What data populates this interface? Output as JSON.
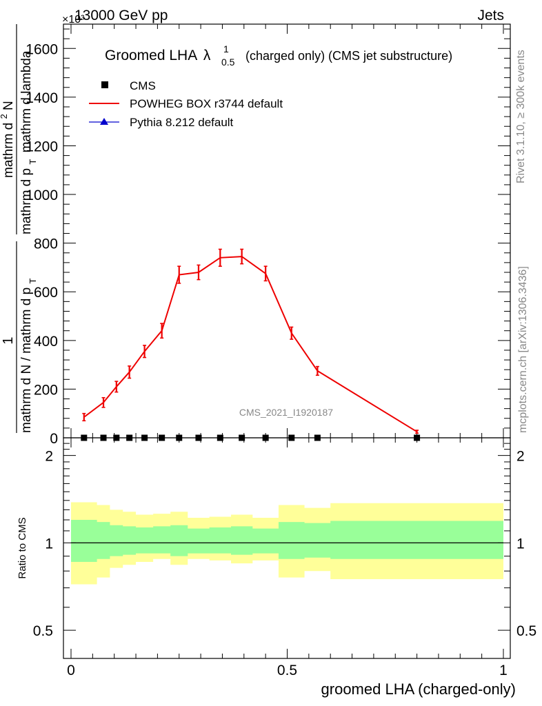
{
  "header": {
    "left": "13000 GeV pp",
    "right": "Jets",
    "exponent": "×10³"
  },
  "side_text": {
    "rivet": "Rivet 3.1.10, ≥ 300k events",
    "mcplots": "mcplots.cern.ch [arXiv:1306.3436]"
  },
  "watermark": "CMS_2021_I1920187",
  "chart_data": [
    {
      "type": "line",
      "title_main": "Groomed LHA",
      "title_lambda": "λ",
      "title_sup": "1",
      "title_sub": "0.5",
      "title_rest": "(charged only) (CMS jet substructure)",
      "ylabel_top_num": "1",
      "ylabel_top_den": "mathrm d N / mathrm d p",
      "ylabel_top_den_sub": "T",
      "ylabel_bottom_num": "mathrm d",
      "ylabel_bottom_num_sup": "2",
      "ylabel_bottom_num_rest": "N",
      "ylabel_bottom_den": "mathrm d p",
      "ylabel_bottom_den_sub": "T",
      "ylabel_bottom_den_rest": "mathrm d lambda",
      "xlim": [
        0,
        1
      ],
      "ylim": [
        0,
        1700
      ],
      "y_ticks": [
        0,
        200,
        400,
        600,
        800,
        1000,
        1200,
        1400,
        1600
      ],
      "y_tick_labels": [
        "0",
        "200",
        "400",
        "600",
        "800",
        "1000",
        "1200",
        "1400",
        "1600"
      ],
      "legend": [
        {
          "name": "CMS",
          "color": "#000000",
          "marker": "square"
        },
        {
          "name": "POWHEG BOX r3744 default",
          "color": "#ee0000",
          "marker": "line"
        },
        {
          "name": "Pythia 8.212 default",
          "color": "#0000cc",
          "marker": "triangle"
        }
      ],
      "series": [
        {
          "name": "CMS",
          "x": [
            0.03,
            0.075,
            0.105,
            0.135,
            0.17,
            0.21,
            0.25,
            0.295,
            0.345,
            0.395,
            0.45,
            0.51,
            0.57,
            0.8
          ],
          "values": [
            0,
            0,
            0,
            0,
            0,
            0,
            0,
            0,
            0,
            0,
            0,
            0,
            0,
            0
          ]
        },
        {
          "name": "POWHEG BOX r3744 default",
          "x": [
            0.03,
            0.075,
            0.105,
            0.135,
            0.17,
            0.21,
            0.25,
            0.295,
            0.345,
            0.395,
            0.45,
            0.51,
            0.57,
            0.8
          ],
          "values": [
            85,
            145,
            210,
            270,
            355,
            440,
            670,
            680,
            740,
            745,
            675,
            430,
            275,
            25
          ],
          "errors": [
            15,
            20,
            22,
            25,
            25,
            30,
            35,
            30,
            35,
            30,
            30,
            25,
            18,
            6
          ]
        }
      ]
    },
    {
      "type": "area",
      "ylabel": "Ratio to CMS",
      "xlabel": "groomed LHA (charged-only)",
      "xlim": [
        0,
        1
      ],
      "ylim": [
        0.4,
        2.3
      ],
      "y_ticks": [
        0.5,
        1,
        2
      ],
      "y_tick_labels": [
        "0.5",
        "1",
        "2"
      ],
      "x_ticks": [
        0,
        0.5,
        1
      ],
      "x_tick_labels": [
        "0",
        "0.5",
        "1"
      ],
      "band_edges": [
        0,
        0.06,
        0.09,
        0.12,
        0.15,
        0.19,
        0.23,
        0.27,
        0.32,
        0.37,
        0.42,
        0.48,
        0.54,
        0.6,
        1.0
      ],
      "outer_band_high": [
        1.38,
        1.35,
        1.3,
        1.28,
        1.25,
        1.26,
        1.28,
        1.22,
        1.23,
        1.25,
        1.22,
        1.35,
        1.32,
        1.37
      ],
      "outer_band_low": [
        0.72,
        0.76,
        0.82,
        0.84,
        0.86,
        0.88,
        0.84,
        0.88,
        0.87,
        0.85,
        0.87,
        0.76,
        0.8,
        0.75
      ],
      "inner_band_high": [
        1.2,
        1.18,
        1.15,
        1.14,
        1.13,
        1.14,
        1.15,
        1.12,
        1.13,
        1.14,
        1.12,
        1.18,
        1.17,
        1.19
      ],
      "inner_band_low": [
        0.86,
        0.88,
        0.9,
        0.91,
        0.92,
        0.92,
        0.9,
        0.92,
        0.92,
        0.91,
        0.92,
        0.88,
        0.89,
        0.88
      ],
      "reference": 1,
      "colors": {
        "outer": "#ffff99",
        "inner": "#99ff99",
        "line": "#000000"
      }
    }
  ]
}
